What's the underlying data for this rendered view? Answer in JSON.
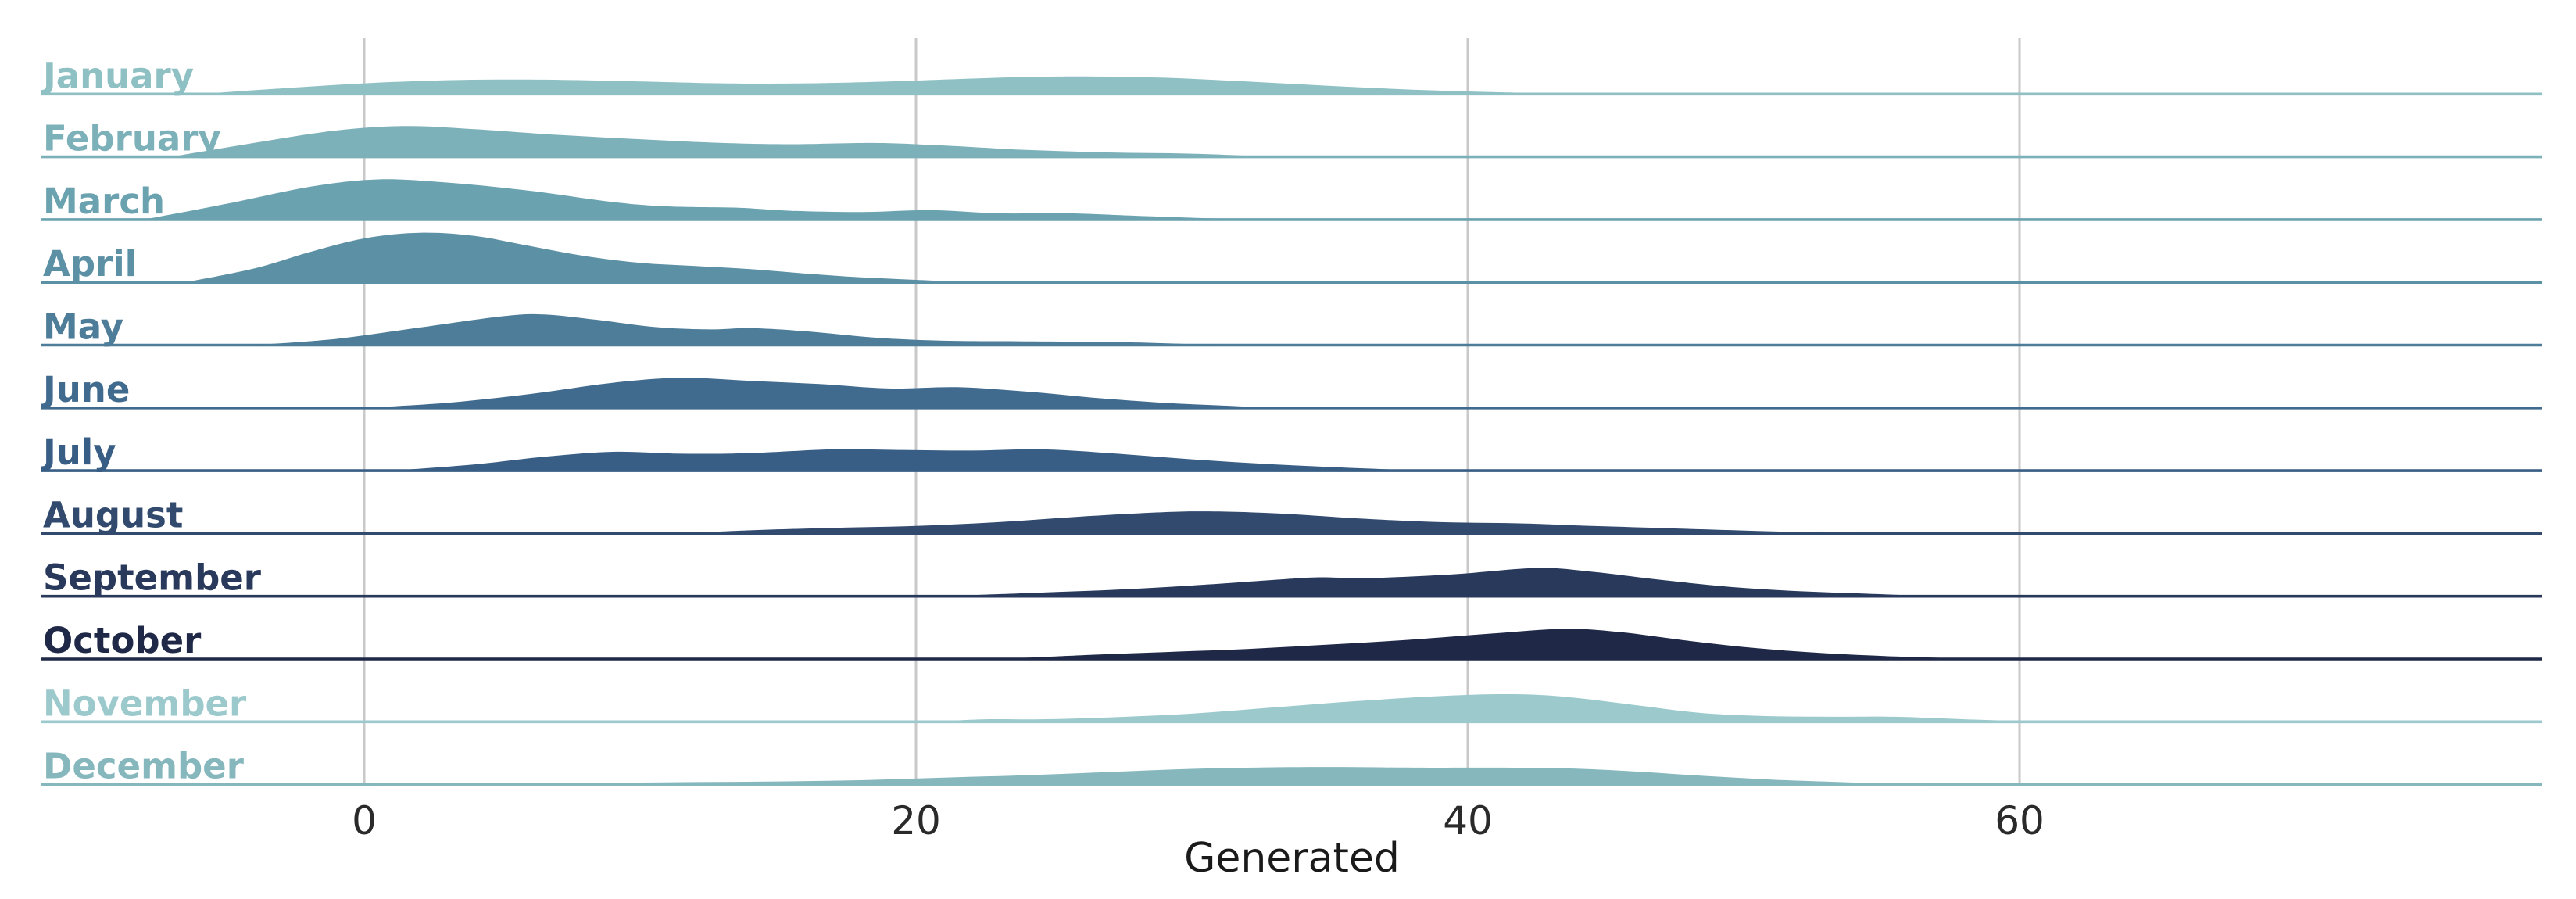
{
  "chart_data": {
    "type": "area",
    "variant": "ridgeline-joyplot-kde",
    "title": "",
    "xlabel": "Generated",
    "x_ticks": [
      0,
      20,
      40,
      60
    ],
    "x_tick_labels": [
      "0",
      "20",
      "40",
      "60"
    ],
    "x_visible_range": [
      -11.7,
      79.0
    ],
    "grid": "vertical-only",
    "legend": "none",
    "note": "density_points are [x_value, relative_height] pairs; relative_height 1.0 equals one row spacing",
    "colors": {
      "grid": "#c9c9c9",
      "tick_text": "#2a2a2a",
      "axis_label_text": "#1a1a1a",
      "background": "#ffffff"
    },
    "series": [
      {
        "name": "January",
        "color": "#8fc0c3",
        "density_points": [
          [
            -6,
            0
          ],
          [
            -3,
            0.09
          ],
          [
            0,
            0.17
          ],
          [
            3,
            0.22
          ],
          [
            6,
            0.23
          ],
          [
            9,
            0.21
          ],
          [
            13,
            0.17
          ],
          [
            16,
            0.17
          ],
          [
            19,
            0.2
          ],
          [
            23,
            0.26
          ],
          [
            26,
            0.28
          ],
          [
            29,
            0.26
          ],
          [
            32,
            0.2
          ],
          [
            35,
            0.13
          ],
          [
            38,
            0.07
          ],
          [
            41,
            0.03
          ],
          [
            44,
            0
          ]
        ]
      },
      {
        "name": "February",
        "color": "#7db1b9",
        "density_points": [
          [
            -7,
            0
          ],
          [
            -4,
            0.22
          ],
          [
            -1,
            0.42
          ],
          [
            1.5,
            0.49
          ],
          [
            4,
            0.44
          ],
          [
            7,
            0.35
          ],
          [
            10,
            0.28
          ],
          [
            13,
            0.22
          ],
          [
            15.5,
            0.2
          ],
          [
            18.5,
            0.22
          ],
          [
            21,
            0.18
          ],
          [
            24,
            0.11
          ],
          [
            27,
            0.07
          ],
          [
            30,
            0.05
          ],
          [
            33,
            0
          ]
        ]
      },
      {
        "name": "March",
        "color": "#6ba2b0",
        "density_points": [
          [
            -8,
            0
          ],
          [
            -5,
            0.25
          ],
          [
            -2,
            0.52
          ],
          [
            0.5,
            0.64
          ],
          [
            3,
            0.59
          ],
          [
            6,
            0.46
          ],
          [
            9,
            0.28
          ],
          [
            11,
            0.21
          ],
          [
            13.5,
            0.19
          ],
          [
            15.5,
            0.14
          ],
          [
            18,
            0.12
          ],
          [
            20.5,
            0.15
          ],
          [
            23,
            0.1
          ],
          [
            25.5,
            0.1
          ],
          [
            28,
            0.06
          ],
          [
            32,
            0
          ]
        ]
      },
      {
        "name": "April",
        "color": "#5c90a5",
        "density_points": [
          [
            -6.5,
            0
          ],
          [
            -4,
            0.22
          ],
          [
            -2,
            0.48
          ],
          [
            0,
            0.7
          ],
          [
            2,
            0.79
          ],
          [
            4,
            0.74
          ],
          [
            6,
            0.58
          ],
          [
            8,
            0.42
          ],
          [
            10,
            0.31
          ],
          [
            12,
            0.26
          ],
          [
            14,
            0.21
          ],
          [
            16,
            0.14
          ],
          [
            18,
            0.08
          ],
          [
            20,
            0.04
          ],
          [
            22,
            0
          ]
        ]
      },
      {
        "name": "May",
        "color": "#4d7d99",
        "density_points": [
          [
            -4,
            0
          ],
          [
            -1,
            0.1
          ],
          [
            2,
            0.28
          ],
          [
            5,
            0.46
          ],
          [
            6.5,
            0.49
          ],
          [
            8.5,
            0.4
          ],
          [
            10.5,
            0.29
          ],
          [
            12.5,
            0.25
          ],
          [
            14,
            0.27
          ],
          [
            16,
            0.22
          ],
          [
            18.5,
            0.12
          ],
          [
            21,
            0.07
          ],
          [
            24,
            0.06
          ],
          [
            27,
            0.05
          ],
          [
            29,
            0.03
          ],
          [
            31,
            0
          ]
        ]
      },
      {
        "name": "June",
        "color": "#416b8e",
        "density_points": [
          [
            0,
            0
          ],
          [
            3,
            0.08
          ],
          [
            6,
            0.22
          ],
          [
            9,
            0.4
          ],
          [
            11.5,
            0.48
          ],
          [
            14,
            0.43
          ],
          [
            16.5,
            0.38
          ],
          [
            19,
            0.31
          ],
          [
            21.5,
            0.33
          ],
          [
            24,
            0.26
          ],
          [
            26.5,
            0.16
          ],
          [
            29,
            0.08
          ],
          [
            31,
            0.04
          ],
          [
            33,
            0
          ]
        ]
      },
      {
        "name": "July",
        "color": "#395e85",
        "density_points": [
          [
            1,
            0
          ],
          [
            4,
            0.1
          ],
          [
            6.5,
            0.22
          ],
          [
            9,
            0.3
          ],
          [
            11.5,
            0.27
          ],
          [
            14,
            0.28
          ],
          [
            17,
            0.34
          ],
          [
            19.5,
            0.33
          ],
          [
            22,
            0.32
          ],
          [
            24.5,
            0.34
          ],
          [
            27,
            0.28
          ],
          [
            30,
            0.18
          ],
          [
            33,
            0.1
          ],
          [
            36,
            0.04
          ],
          [
            38.5,
            0
          ]
        ]
      },
      {
        "name": "August",
        "color": "#314a6e",
        "density_points": [
          [
            11.5,
            0
          ],
          [
            14,
            0.05
          ],
          [
            17,
            0.09
          ],
          [
            20,
            0.12
          ],
          [
            23,
            0.18
          ],
          [
            26,
            0.27
          ],
          [
            29,
            0.34
          ],
          [
            31,
            0.35
          ],
          [
            33.5,
            0.31
          ],
          [
            36,
            0.24
          ],
          [
            39,
            0.18
          ],
          [
            42,
            0.16
          ],
          [
            44.5,
            0.12
          ],
          [
            47.5,
            0.08
          ],
          [
            50.5,
            0.04
          ],
          [
            54,
            0
          ]
        ]
      },
      {
        "name": "September",
        "color": "#28395c",
        "density_points": [
          [
            21,
            0
          ],
          [
            24,
            0.05
          ],
          [
            27,
            0.1
          ],
          [
            30,
            0.17
          ],
          [
            33,
            0.26
          ],
          [
            34.5,
            0.3
          ],
          [
            36.5,
            0.29
          ],
          [
            39.5,
            0.35
          ],
          [
            42.5,
            0.45
          ],
          [
            44.5,
            0.39
          ],
          [
            47,
            0.26
          ],
          [
            49.5,
            0.15
          ],
          [
            52,
            0.08
          ],
          [
            54.5,
            0.04
          ],
          [
            57,
            0
          ]
        ]
      },
      {
        "name": "October",
        "color": "#1f2847",
        "density_points": [
          [
            23,
            0
          ],
          [
            26,
            0.06
          ],
          [
            29,
            0.11
          ],
          [
            32,
            0.16
          ],
          [
            35,
            0.23
          ],
          [
            38,
            0.31
          ],
          [
            41,
            0.41
          ],
          [
            43.5,
            0.48
          ],
          [
            45.5,
            0.43
          ],
          [
            48,
            0.29
          ],
          [
            50.5,
            0.17
          ],
          [
            53,
            0.09
          ],
          [
            55.5,
            0.04
          ],
          [
            58,
            0.01
          ],
          [
            60,
            0
          ]
        ]
      },
      {
        "name": "November",
        "color": "#9ccacc",
        "density_points": [
          [
            20.5,
            0
          ],
          [
            22.5,
            0.04
          ],
          [
            24.5,
            0.04
          ],
          [
            27,
            0.07
          ],
          [
            30,
            0.13
          ],
          [
            33,
            0.23
          ],
          [
            36,
            0.33
          ],
          [
            39,
            0.41
          ],
          [
            41.5,
            0.44
          ],
          [
            43.5,
            0.4
          ],
          [
            46,
            0.27
          ],
          [
            48.5,
            0.14
          ],
          [
            51,
            0.09
          ],
          [
            53.5,
            0.08
          ],
          [
            55.5,
            0.08
          ],
          [
            58,
            0.04
          ],
          [
            61,
            0
          ]
        ]
      },
      {
        "name": "December",
        "color": "#85b7bd",
        "density_points": [
          [
            0.5,
            0
          ],
          [
            3,
            0.02
          ],
          [
            6,
            0.03
          ],
          [
            9,
            0.03
          ],
          [
            12,
            0.04
          ],
          [
            15,
            0.05
          ],
          [
            18,
            0.07
          ],
          [
            21,
            0.11
          ],
          [
            24,
            0.15
          ],
          [
            27,
            0.2
          ],
          [
            30,
            0.25
          ],
          [
            33,
            0.275
          ],
          [
            35.5,
            0.28
          ],
          [
            38,
            0.27
          ],
          [
            41,
            0.27
          ],
          [
            43.5,
            0.26
          ],
          [
            46,
            0.21
          ],
          [
            48.5,
            0.14
          ],
          [
            51,
            0.08
          ],
          [
            53.5,
            0.04
          ],
          [
            56.5,
            0
          ]
        ]
      }
    ]
  }
}
